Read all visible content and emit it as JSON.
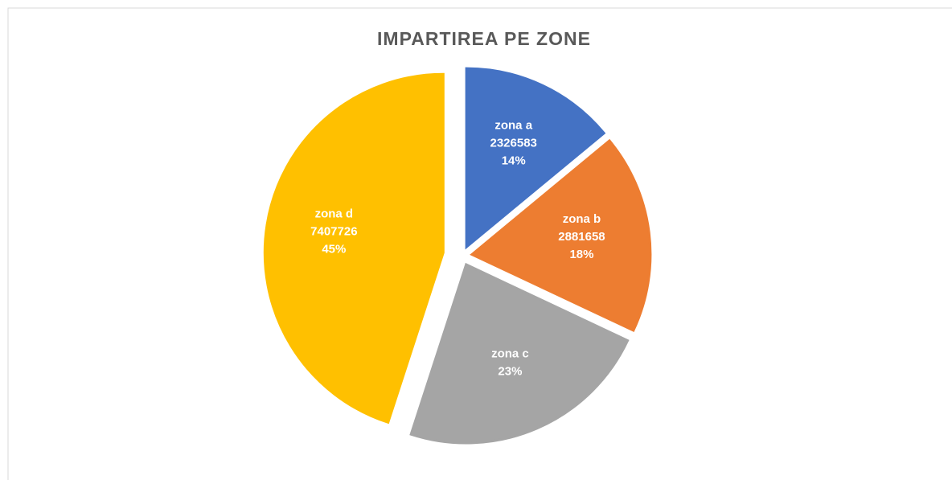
{
  "chart_data": {
    "type": "pie",
    "title": "IMPARTIREA PE ZONE",
    "categories": [
      "zona a",
      "zona b",
      "zona c",
      "zona d"
    ],
    "values": [
      14,
      18,
      23,
      45
    ],
    "value_labels": [
      "14%",
      "18%",
      "23%",
      "45%"
    ],
    "amounts": [
      "2326583",
      "2881658",
      null,
      "7407726"
    ],
    "colors": [
      "#4472c4",
      "#ed7d31",
      "#a5a5a5",
      "#ffc000"
    ]
  }
}
